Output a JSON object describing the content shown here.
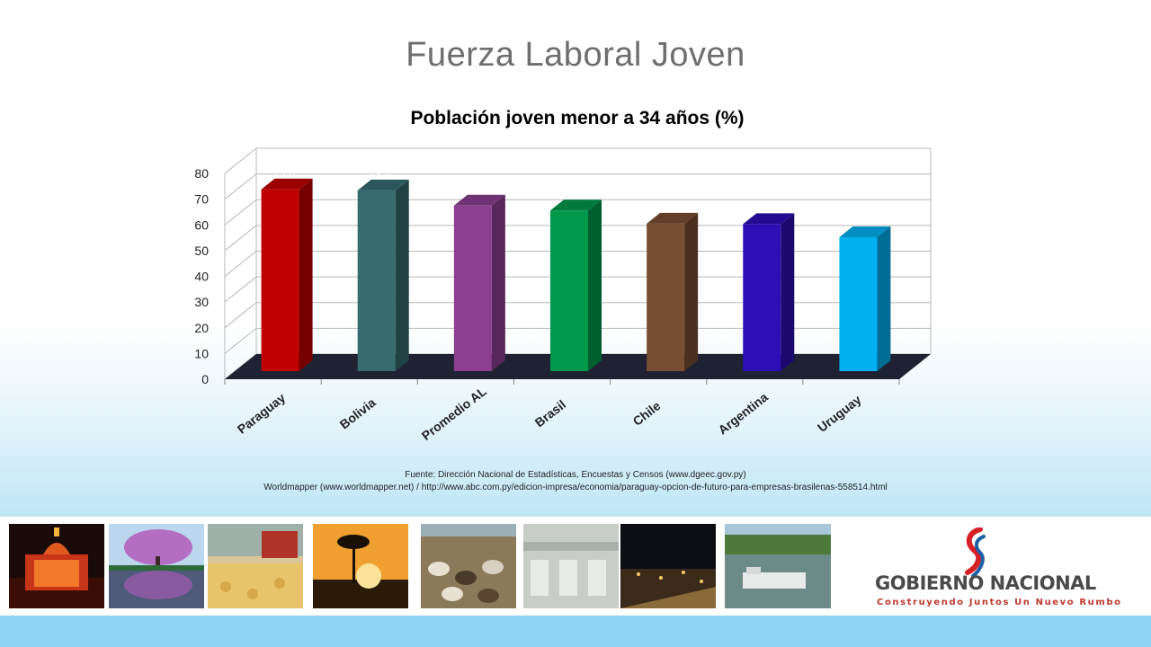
{
  "slide": {
    "title": "Fuerza Laboral Joven"
  },
  "chart_data": {
    "type": "bar",
    "title": "Población joven menor a 34 años (%)",
    "xlabel": "",
    "ylabel": "",
    "ylim": [
      0,
      80
    ],
    "yticks": [
      0,
      10,
      20,
      30,
      40,
      50,
      60,
      70,
      80
    ],
    "grid": true,
    "categories": [
      "Paraguay",
      "Bolivia",
      "Promedio AL",
      "Brasil",
      "Chile",
      "Argentina",
      "Uruguay"
    ],
    "values": [
      73.8,
      73.4,
      67.5,
      65.6,
      60.5,
      60.3,
      55.2
    ],
    "colors": [
      "#c00000",
      "#366b70",
      "#8b3f8e",
      "#00994c",
      "#7a4e32",
      "#2c0fb5",
      "#00b0f0"
    ]
  },
  "source": {
    "line1": "Fuente: Dirección Nacional de Estadísticas, Encuestas y Censos (www.dgeec.gov.py)",
    "line2": "Worldmapper (www.worldmapper.net) / http://www.abc.com.py/edicion-impresa/economia/paraguay-opcion-de-futuro-para-empresas-brasilenas-558514.html"
  },
  "footer": {
    "photos": [
      "palace-night",
      "lapacho-tree",
      "soy-harvest",
      "palm-sunset",
      "cattle-herd",
      "factory-floor",
      "night-city",
      "river-barge"
    ],
    "logo_name": "GOBIERNO NACIONAL",
    "logo_tagline": "Construyendo Juntos Un Nuevo Rumbo",
    "brand_colors": {
      "red": "#d71f26",
      "blue": "#1b5fa8",
      "gray": "#4a4a4a"
    }
  }
}
